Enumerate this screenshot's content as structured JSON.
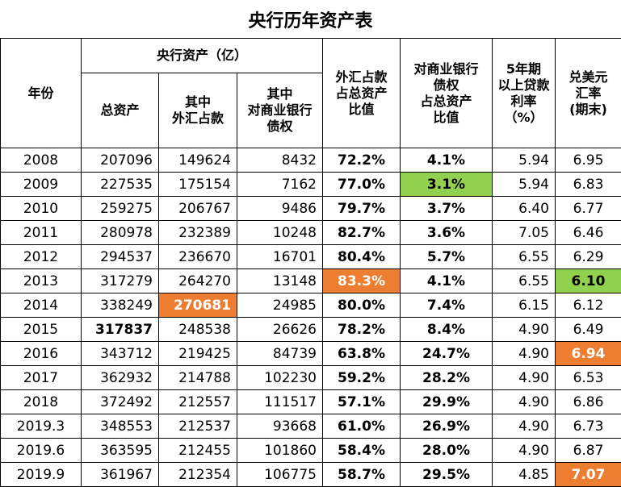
{
  "title": "央行历年资产表",
  "colors": {
    "highlight_green": "#92d050",
    "highlight_orange": "#ed7d31"
  },
  "headers": {
    "year": "年份",
    "group": "央行资产（亿）",
    "total_assets": "总资产",
    "fx_line1": "其中",
    "fx_line2": "外汇占款",
    "bank_line1": "其中",
    "bank_line2": "对商业银行",
    "bank_line3": "债权",
    "fx_ratio_line1": "外汇占款",
    "fx_ratio_line2": "占总资产",
    "fx_ratio_line3": "比值",
    "bank_ratio_line1": "对商业银行",
    "bank_ratio_line2": "债权",
    "bank_ratio_line3": "占总资产",
    "bank_ratio_line4": "比值",
    "rate_line1": "5年期",
    "rate_line2": "以上贷款",
    "rate_line3": "利率",
    "rate_line4": "（%）",
    "usd_line1": "兑美元",
    "usd_line2": "汇率",
    "usd_line3": "(期末)"
  },
  "rows": [
    {
      "year": "2008",
      "total": "207096",
      "fx": "149624",
      "bank": "8432",
      "fx_ratio": "72.2%",
      "bank_ratio": "4.1%",
      "rate": "5.94",
      "usd": "6.95"
    },
    {
      "year": "2009",
      "total": "227535",
      "fx": "175154",
      "bank": "7162",
      "fx_ratio": "77.0%",
      "bank_ratio": "3.1%",
      "rate": "5.94",
      "usd": "6.83"
    },
    {
      "year": "2010",
      "total": "259275",
      "fx": "206767",
      "bank": "9486",
      "fx_ratio": "79.7%",
      "bank_ratio": "3.7%",
      "rate": "6.40",
      "usd": "6.77"
    },
    {
      "year": "2011",
      "total": "280978",
      "fx": "232389",
      "bank": "10248",
      "fx_ratio": "82.7%",
      "bank_ratio": "3.6%",
      "rate": "7.05",
      "usd": "6.46"
    },
    {
      "year": "2012",
      "total": "294537",
      "fx": "236670",
      "bank": "16701",
      "fx_ratio": "80.4%",
      "bank_ratio": "5.7%",
      "rate": "6.55",
      "usd": "6.29"
    },
    {
      "year": "2013",
      "total": "317279",
      "fx": "264270",
      "bank": "13148",
      "fx_ratio": "83.3%",
      "bank_ratio": "4.1%",
      "rate": "6.55",
      "usd": "6.10"
    },
    {
      "year": "2014",
      "total": "338249",
      "fx": "270681",
      "bank": "24985",
      "fx_ratio": "80.0%",
      "bank_ratio": "7.4%",
      "rate": "6.15",
      "usd": "6.12"
    },
    {
      "year": "2015",
      "total": "317837",
      "fx": "248538",
      "bank": "26626",
      "fx_ratio": "78.2%",
      "bank_ratio": "8.4%",
      "rate": "4.90",
      "usd": "6.49"
    },
    {
      "year": "2016",
      "total": "343712",
      "fx": "219425",
      "bank": "84739",
      "fx_ratio": "63.8%",
      "bank_ratio": "24.7%",
      "rate": "4.90",
      "usd": "6.94"
    },
    {
      "year": "2017",
      "total": "362932",
      "fx": "214788",
      "bank": "102230",
      "fx_ratio": "59.2%",
      "bank_ratio": "28.2%",
      "rate": "4.90",
      "usd": "6.53"
    },
    {
      "year": "2018",
      "total": "372492",
      "fx": "212557",
      "bank": "111517",
      "fx_ratio": "57.1%",
      "bank_ratio": "29.9%",
      "rate": "4.90",
      "usd": "6.86"
    },
    {
      "year": "2019.3",
      "total": "348553",
      "fx": "212537",
      "bank": "93668",
      "fx_ratio": "61.0%",
      "bank_ratio": "26.9%",
      "rate": "4.90",
      "usd": "6.73"
    },
    {
      "year": "2019.6",
      "total": "363595",
      "fx": "212455",
      "bank": "101860",
      "fx_ratio": "58.4%",
      "bank_ratio": "28.0%",
      "rate": "4.90",
      "usd": "6.87"
    },
    {
      "year": "2019.9",
      "total": "361967",
      "fx": "212354",
      "bank": "106775",
      "fx_ratio": "58.7%",
      "bank_ratio": "29.5%",
      "rate": "4.85",
      "usd": "7.07"
    }
  ]
}
